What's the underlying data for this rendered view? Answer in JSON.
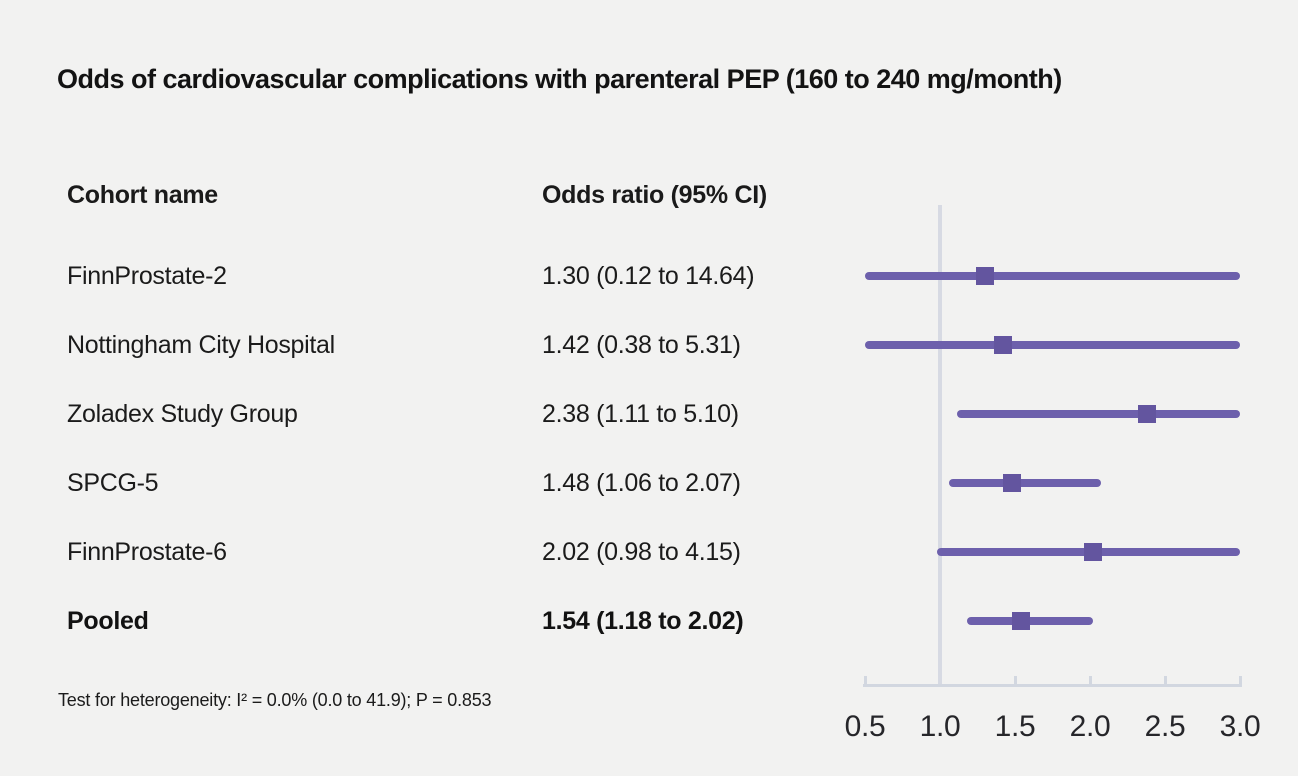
{
  "title": "Odds of cardiovascular complications with parenteral PEP (160 to 240 mg/month)",
  "table": {
    "cohort_header": "Cohort name",
    "or_header": "Odds ratio (95% CI)",
    "rows": [
      {
        "name": "FinnProstate-2",
        "or_text": "1.30 (0.12 to 14.64)",
        "bold": false
      },
      {
        "name": "Nottingham City Hospital",
        "or_text": "1.42 (0.38 to 5.31)",
        "bold": false
      },
      {
        "name": "Zoladex Study Group",
        "or_text": "2.38 (1.11 to 5.10)",
        "bold": false
      },
      {
        "name": "SPCG-5",
        "or_text": "1.48 (1.06 to 2.07)",
        "bold": false
      },
      {
        "name": "FinnProstate-6",
        "or_text": "2.02 (0.98 to 4.15)",
        "bold": false
      },
      {
        "name": "Pooled",
        "or_text": "1.54 (1.18 to 2.02)",
        "bold": true
      }
    ]
  },
  "footnote": "Test for heterogeneity: I² = 0.0% (0.0 to 41.9); P = 0.853",
  "chart_data": {
    "type": "forest",
    "title": "Odds of cardiovascular complications with parenteral PEP (160 to 240 mg/month)",
    "xlabel": "Odds ratio",
    "xlim": [
      0.5,
      3.0
    ],
    "x_ticks": [
      0.5,
      1.0,
      1.5,
      2.0,
      2.5,
      3.0
    ],
    "x_tick_labels": [
      "0.5",
      "1.0",
      "1.5",
      "2.0",
      "2.5",
      "3.0"
    ],
    "reference_line": 1.0,
    "grid": false,
    "points": [
      {
        "label": "FinnProstate-2",
        "or": 1.3,
        "ci_low": 0.12,
        "ci_high": 14.64,
        "pooled": false
      },
      {
        "label": "Nottingham City Hospital",
        "or": 1.42,
        "ci_low": 0.38,
        "ci_high": 5.31,
        "pooled": false
      },
      {
        "label": "Zoladex Study Group",
        "or": 2.38,
        "ci_low": 1.11,
        "ci_high": 5.1,
        "pooled": false
      },
      {
        "label": "SPCG-5",
        "or": 1.48,
        "ci_low": 1.06,
        "ci_high": 2.07,
        "pooled": false
      },
      {
        "label": "FinnProstate-6",
        "or": 2.02,
        "ci_low": 0.98,
        "ci_high": 4.15,
        "pooled": false
      },
      {
        "label": "Pooled",
        "or": 1.54,
        "ci_low": 1.18,
        "ci_high": 2.02,
        "pooled": true
      }
    ],
    "heterogeneity_note": "Test for heterogeneity: I² = 0.0% (0.0 to 41.9); P = 0.853"
  },
  "colors": {
    "background": "#f2f2f1",
    "text": "#1a1a1a",
    "ci_line": "#6d60ac",
    "marker": "#63559f",
    "axis": "#d2d7e0",
    "reference_line": "#d7dae3"
  }
}
